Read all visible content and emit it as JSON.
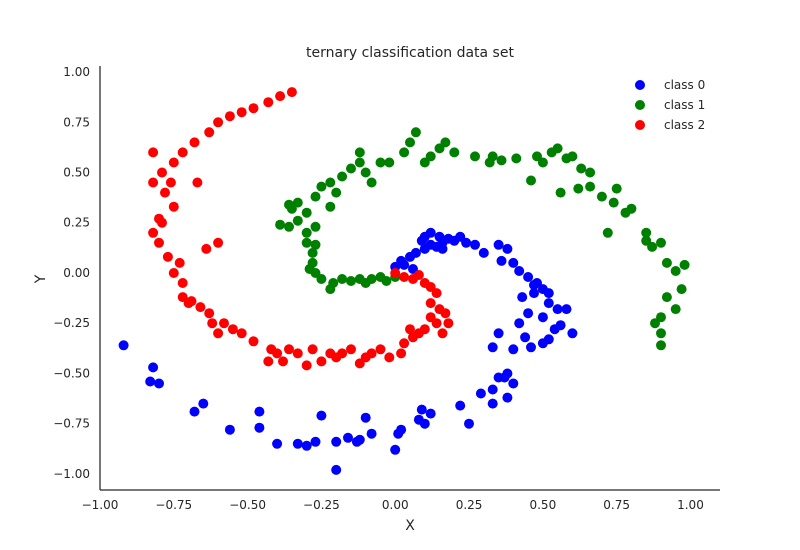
{
  "chart_data": {
    "type": "scatter",
    "title": "ternary classification data set",
    "xlabel": "X",
    "ylabel": "Y",
    "xlim": [
      -1.0,
      1.1
    ],
    "ylim": [
      -1.08,
      1.03
    ],
    "xticks": [
      -1.0,
      -0.75,
      -0.5,
      -0.25,
      0.0,
      0.25,
      0.5,
      0.75,
      1.0
    ],
    "xtick_labels": [
      "−1.00",
      "−0.75",
      "−0.50",
      "−0.25",
      "0.00",
      "0.25",
      "0.50",
      "0.75",
      "1.00"
    ],
    "yticks": [
      -1.0,
      -0.75,
      -0.5,
      -0.25,
      0.0,
      0.25,
      0.5,
      0.75,
      1.0
    ],
    "ytick_labels": [
      "−1.00",
      "−0.75",
      "−0.50",
      "−0.25",
      "0.00",
      "0.25",
      "0.50",
      "0.75",
      "1.00"
    ],
    "grid": false,
    "legend_position": "top-right",
    "series": [
      {
        "name": "class 0",
        "color": "#0000ff",
        "points": [
          [
            0.0,
            0.03
          ],
          [
            0.02,
            0.06
          ],
          [
            0.03,
            0.04
          ],
          [
            0.05,
            0.08
          ],
          [
            0.07,
            0.1
          ],
          [
            0.1,
            0.12
          ],
          [
            0.12,
            0.14
          ],
          [
            0.14,
            0.13
          ],
          [
            0.16,
            0.15
          ],
          [
            0.18,
            0.17
          ],
          [
            0.2,
            0.16
          ],
          [
            0.09,
            0.16
          ],
          [
            0.12,
            0.2
          ],
          [
            0.16,
            0.12
          ],
          [
            0.24,
            0.15
          ],
          [
            0.27,
            0.14
          ],
          [
            0.3,
            0.1
          ],
          [
            0.35,
            0.14
          ],
          [
            0.38,
            0.12
          ],
          [
            0.4,
            0.05
          ],
          [
            0.42,
            0.01
          ],
          [
            0.45,
            -0.02
          ],
          [
            0.48,
            -0.05
          ],
          [
            0.5,
            -0.08
          ],
          [
            0.52,
            -0.1
          ],
          [
            0.47,
            -0.1
          ],
          [
            0.43,
            -0.12
          ],
          [
            0.52,
            -0.15
          ],
          [
            0.55,
            -0.18
          ],
          [
            0.58,
            -0.18
          ],
          [
            0.5,
            -0.22
          ],
          [
            0.56,
            -0.26
          ],
          [
            0.6,
            -0.3
          ],
          [
            0.52,
            -0.33
          ],
          [
            0.5,
            -0.35
          ],
          [
            0.45,
            -0.2
          ],
          [
            0.42,
            -0.25
          ],
          [
            0.44,
            -0.32
          ],
          [
            0.4,
            -0.38
          ],
          [
            0.38,
            -0.5
          ],
          [
            0.35,
            -0.52
          ],
          [
            0.33,
            -0.58
          ],
          [
            0.33,
            -0.65
          ],
          [
            0.38,
            -0.62
          ],
          [
            0.4,
            -0.55
          ],
          [
            0.35,
            -0.3
          ],
          [
            0.33,
            -0.37
          ],
          [
            0.29,
            -0.6
          ],
          [
            0.22,
            -0.66
          ],
          [
            0.25,
            -0.75
          ],
          [
            0.12,
            -0.7
          ],
          [
            0.09,
            -0.68
          ],
          [
            0.08,
            -0.73
          ],
          [
            0.1,
            -0.75
          ],
          [
            0.02,
            -0.78
          ],
          [
            0.01,
            -0.8
          ],
          [
            0.0,
            -0.88
          ],
          [
            -0.08,
            -0.8
          ],
          [
            -0.1,
            -0.72
          ],
          [
            -0.13,
            -0.84
          ],
          [
            -0.16,
            -0.82
          ],
          [
            -0.2,
            -0.84
          ],
          [
            -0.25,
            -0.71
          ],
          [
            -0.27,
            -0.84
          ],
          [
            -0.3,
            -0.86
          ],
          [
            -0.33,
            -0.85
          ],
          [
            -0.4,
            -0.85
          ],
          [
            -0.46,
            -0.69
          ],
          [
            -0.46,
            -0.77
          ],
          [
            -0.56,
            -0.78
          ],
          [
            -0.65,
            -0.65
          ],
          [
            -0.68,
            -0.69
          ],
          [
            -0.8,
            -0.55
          ],
          [
            -0.82,
            -0.47
          ],
          [
            -0.83,
            -0.54
          ],
          [
            -0.92,
            -0.36
          ],
          [
            -0.2,
            -0.98
          ],
          [
            -0.12,
            -0.83
          ],
          [
            0.1,
            0.18
          ],
          [
            0.06,
            0.02
          ],
          [
            0.15,
            0.18
          ],
          [
            0.22,
            0.18
          ],
          [
            0.36,
            0.06
          ],
          [
            0.47,
            -0.06
          ],
          [
            0.54,
            -0.28
          ],
          [
            0.46,
            -0.37
          ],
          [
            0.37,
            -0.52
          ]
        ]
      },
      {
        "name": "class 1",
        "color": "#008000",
        "points": [
          [
            0.0,
            -0.02
          ],
          [
            -0.03,
            -0.04
          ],
          [
            -0.05,
            -0.02
          ],
          [
            -0.08,
            -0.03
          ],
          [
            -0.1,
            -0.05
          ],
          [
            -0.12,
            -0.03
          ],
          [
            -0.15,
            -0.04
          ],
          [
            -0.18,
            -0.03
          ],
          [
            -0.21,
            -0.05
          ],
          [
            -0.22,
            -0.08
          ],
          [
            -0.25,
            -0.03
          ],
          [
            -0.27,
            0.0
          ],
          [
            -0.29,
            0.02
          ],
          [
            -0.28,
            0.05
          ],
          [
            -0.28,
            0.1
          ],
          [
            -0.27,
            0.14
          ],
          [
            -0.3,
            0.15
          ],
          [
            -0.3,
            0.2
          ],
          [
            -0.27,
            0.23
          ],
          [
            -0.33,
            0.26
          ],
          [
            -0.36,
            0.23
          ],
          [
            -0.39,
            0.24
          ],
          [
            -0.35,
            0.32
          ],
          [
            -0.33,
            0.35
          ],
          [
            -0.3,
            0.3
          ],
          [
            -0.27,
            0.38
          ],
          [
            -0.25,
            0.43
          ],
          [
            -0.22,
            0.45
          ],
          [
            -0.2,
            0.4
          ],
          [
            -0.18,
            0.48
          ],
          [
            -0.15,
            0.52
          ],
          [
            -0.12,
            0.55
          ],
          [
            -0.12,
            0.6
          ],
          [
            -0.1,
            0.5
          ],
          [
            -0.05,
            0.55
          ],
          [
            -0.02,
            0.55
          ],
          [
            0.03,
            0.6
          ],
          [
            0.05,
            0.65
          ],
          [
            0.07,
            0.7
          ],
          [
            0.1,
            0.55
          ],
          [
            0.12,
            0.58
          ],
          [
            0.15,
            0.62
          ],
          [
            0.17,
            0.65
          ],
          [
            0.2,
            0.6
          ],
          [
            0.27,
            0.58
          ],
          [
            0.32,
            0.55
          ],
          [
            0.36,
            0.56
          ],
          [
            0.41,
            0.57
          ],
          [
            0.48,
            0.58
          ],
          [
            0.5,
            0.55
          ],
          [
            0.53,
            0.6
          ],
          [
            0.55,
            0.62
          ],
          [
            0.58,
            0.57
          ],
          [
            0.6,
            0.58
          ],
          [
            0.63,
            0.52
          ],
          [
            0.66,
            0.5
          ],
          [
            0.62,
            0.42
          ],
          [
            0.66,
            0.43
          ],
          [
            0.7,
            0.38
          ],
          [
            0.74,
            0.35
          ],
          [
            0.78,
            0.3
          ],
          [
            0.8,
            0.32
          ],
          [
            0.85,
            0.2
          ],
          [
            0.87,
            0.13
          ],
          [
            0.9,
            0.15
          ],
          [
            0.92,
            0.05
          ],
          [
            0.95,
            0.01
          ],
          [
            0.98,
            0.04
          ],
          [
            0.97,
            -0.08
          ],
          [
            0.95,
            -0.18
          ],
          [
            0.92,
            -0.12
          ],
          [
            0.9,
            -0.22
          ],
          [
            0.88,
            -0.25
          ],
          [
            0.9,
            -0.3
          ],
          [
            0.9,
            -0.36
          ],
          [
            0.56,
            0.4
          ],
          [
            0.72,
            0.2
          ],
          [
            0.85,
            0.16
          ],
          [
            0.75,
            0.42
          ],
          [
            0.46,
            0.46
          ],
          [
            0.33,
            0.58
          ],
          [
            -0.08,
            0.45
          ],
          [
            -0.36,
            0.34
          ],
          [
            -0.22,
            0.33
          ]
        ]
      },
      {
        "name": "class 2",
        "color": "#ff0000",
        "points": [
          [
            0.0,
            0.0
          ],
          [
            0.03,
            -0.02
          ],
          [
            0.06,
            -0.03
          ],
          [
            0.08,
            -0.01
          ],
          [
            0.1,
            -0.05
          ],
          [
            0.12,
            -0.07
          ],
          [
            0.14,
            -0.1
          ],
          [
            0.12,
            -0.15
          ],
          [
            0.15,
            -0.18
          ],
          [
            0.17,
            -0.2
          ],
          [
            0.12,
            -0.22
          ],
          [
            0.1,
            -0.28
          ],
          [
            0.08,
            -0.3
          ],
          [
            0.05,
            -0.28
          ],
          [
            0.03,
            -0.35
          ],
          [
            0.02,
            -0.4
          ],
          [
            -0.02,
            -0.42
          ],
          [
            -0.05,
            -0.38
          ],
          [
            -0.08,
            -0.4
          ],
          [
            -0.12,
            -0.45
          ],
          [
            -0.15,
            -0.38
          ],
          [
            -0.2,
            -0.42
          ],
          [
            -0.25,
            -0.44
          ],
          [
            -0.3,
            -0.46
          ],
          [
            -0.33,
            -0.4
          ],
          [
            -0.36,
            -0.38
          ],
          [
            -0.4,
            -0.4
          ],
          [
            -0.43,
            -0.44
          ],
          [
            -0.48,
            -0.34
          ],
          [
            -0.52,
            -0.3
          ],
          [
            -0.55,
            -0.28
          ],
          [
            -0.58,
            -0.25
          ],
          [
            -0.63,
            -0.2
          ],
          [
            -0.66,
            -0.17
          ],
          [
            -0.69,
            -0.14
          ],
          [
            -0.72,
            -0.05
          ],
          [
            -0.75,
            0.0
          ],
          [
            -0.77,
            0.08
          ],
          [
            -0.8,
            0.15
          ],
          [
            -0.82,
            0.2
          ],
          [
            -0.8,
            0.27
          ],
          [
            -0.75,
            0.33
          ],
          [
            -0.78,
            0.4
          ],
          [
            -0.82,
            0.45
          ],
          [
            -0.79,
            0.5
          ],
          [
            -0.75,
            0.55
          ],
          [
            -0.72,
            0.6
          ],
          [
            -0.68,
            0.65
          ],
          [
            -0.63,
            0.7
          ],
          [
            -0.6,
            0.75
          ],
          [
            -0.56,
            0.78
          ],
          [
            -0.52,
            0.8
          ],
          [
            -0.48,
            0.82
          ],
          [
            -0.43,
            0.85
          ],
          [
            -0.39,
            0.88
          ],
          [
            -0.35,
            0.9
          ],
          [
            -0.18,
            -0.4
          ],
          [
            -0.22,
            -0.4
          ],
          [
            -0.62,
            -0.25
          ],
          [
            -0.7,
            -0.15
          ],
          [
            -0.73,
            0.05
          ],
          [
            -0.79,
            0.25
          ],
          [
            -0.76,
            0.45
          ],
          [
            -0.82,
            0.6
          ],
          [
            -0.67,
            0.45
          ],
          [
            -0.64,
            0.12
          ],
          [
            -0.6,
            0.15
          ],
          [
            0.18,
            -0.25
          ],
          [
            0.16,
            -0.3
          ],
          [
            0.14,
            -0.25
          ],
          [
            -0.6,
            -0.3
          ],
          [
            -0.72,
            -0.12
          ],
          [
            -0.42,
            -0.38
          ],
          [
            -0.38,
            -0.44
          ],
          [
            -0.1,
            -0.42
          ],
          [
            0.06,
            -0.32
          ],
          [
            -0.28,
            -0.38
          ]
        ]
      }
    ]
  }
}
